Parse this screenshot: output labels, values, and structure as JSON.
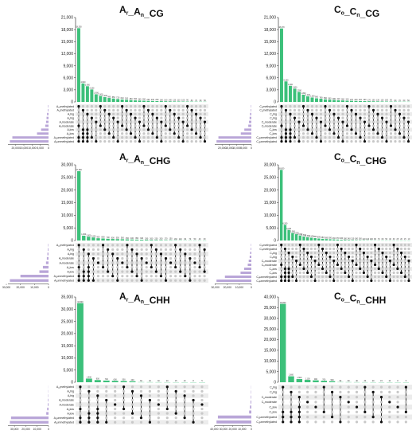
{
  "colors": {
    "bar": "#3cc07a",
    "set_bar": "#b9a6d8",
    "dot_on": "#111111",
    "dot_off": "#c8c8c8",
    "stripe": "#ececec"
  },
  "chart_data": [
    {
      "type": "bar",
      "title": "A_r _A_n _CG",
      "title_parts": [
        [
          "A",
          "r"
        ],
        [
          "_A",
          "n"
        ],
        [
          "_CG",
          ""
        ]
      ],
      "ylim": [
        0,
        21000
      ],
      "yticks": [
        0,
        3000,
        6000,
        9000,
        12000,
        15000,
        18000,
        21000
      ],
      "values": [
        18350,
        4600,
        3900,
        3100,
        1900,
        1500,
        1200,
        980,
        850,
        720,
        610,
        520,
        450,
        390,
        340,
        300,
        260,
        230,
        200,
        180,
        160,
        140,
        120,
        110,
        100,
        90,
        80,
        70,
        60,
        50
      ],
      "sets": [
        "A_m_methylated",
        "A_n_methylated",
        "A_r_hig",
        "A_n_hig",
        "A_r_moderate",
        "A_n_moderate",
        "A_r_low",
        "A_n_low",
        "A_n_unmethylated",
        "A_r_unmethylated"
      ],
      "set_sizes": [
        300,
        400,
        900,
        1200,
        1500,
        2000,
        4500,
        7000,
        22000,
        23500
      ],
      "set_ticks": [
        20000,
        15000,
        10000,
        5000,
        0
      ]
    },
    {
      "type": "bar",
      "title": "C_o _C_n _CG",
      "title_parts": [
        [
          "C",
          "o"
        ],
        [
          "_C",
          "n"
        ],
        [
          "_CG",
          ""
        ]
      ],
      "ylim": [
        0,
        21000
      ],
      "yticks": [
        0,
        3000,
        6000,
        9000,
        12000,
        15000,
        18000,
        21000
      ],
      "values": [
        18270,
        5100,
        4000,
        3300,
        2500,
        1800,
        1400,
        1100,
        900,
        780,
        650,
        560,
        480,
        410,
        360,
        310,
        270,
        240,
        210,
        190,
        170,
        150,
        130,
        115,
        100,
        90,
        80,
        70,
        60,
        50
      ],
      "sets": [
        "C_o_methylated",
        "C_n_methylated",
        "C_o_hig",
        "C_n_hig",
        "C_o_moderate",
        "C_n_moderate",
        "C_o_low",
        "C_n_low",
        "C_o_unmethylated",
        "C_n_unmethylated"
      ],
      "set_sizes": [
        300,
        400,
        900,
        1200,
        1600,
        2100,
        4800,
        7200,
        22500,
        23800
      ],
      "set_ticks": [
        20000,
        15000,
        10000,
        5000,
        0
      ]
    },
    {
      "type": "bar",
      "title": "A_r _A_n _CHG",
      "title_parts": [
        [
          "A",
          "r"
        ],
        [
          "_A",
          "n"
        ],
        [
          "_CHG",
          ""
        ]
      ],
      "ylim": [
        0,
        30000
      ],
      "yticks": [
        0,
        5000,
        10000,
        15000,
        20000,
        25000,
        30000
      ],
      "values": [
        27500,
        1900,
        1500,
        1200,
        900,
        800,
        700,
        600,
        550,
        500,
        450,
        400,
        350,
        320,
        290,
        260,
        230,
        200,
        170,
        150,
        130,
        110,
        90,
        70,
        50,
        40,
        30
      ],
      "sets": [
        "A_m_methylated",
        "A_n_hig",
        "A_r_hig",
        "A_n_moderate",
        "A_r_moderate",
        "A_n_low",
        "A_r_low",
        "A_n_unmethylated",
        "A_r_unmethylated"
      ],
      "set_sizes": [
        300,
        500,
        800,
        1200,
        1800,
        4000,
        6500,
        20000,
        27500
      ],
      "set_ticks": [
        30000,
        20000,
        10000,
        0
      ]
    },
    {
      "type": "bar",
      "title": "C_o _C_n _CHG",
      "title_parts": [
        [
          "C",
          "o"
        ],
        [
          "_C",
          "n"
        ],
        [
          "_CHG",
          ""
        ]
      ],
      "ylim": [
        0,
        30000
      ],
      "yticks": [
        0,
        5000,
        10000,
        15000,
        20000,
        25000,
        30000
      ],
      "values": [
        28000,
        6200,
        4200,
        3000,
        2500,
        2000,
        1600,
        1300,
        1100,
        950,
        800,
        680,
        580,
        500,
        430,
        370,
        320,
        280,
        240,
        210,
        180,
        160,
        140,
        120,
        100,
        80,
        70,
        60,
        50,
        40,
        30,
        25,
        20,
        15,
        10
      ],
      "sets": [
        "C_o_methylated",
        "C_n_methylated",
        "C_o_hig",
        "C_n_hig",
        "C_o_moderate",
        "C_n_moderate",
        "C_o_low",
        "C_n_low",
        "C_o_unmethylated",
        "C_n_unmethylated"
      ],
      "set_sizes": [
        300,
        500,
        1000,
        1400,
        2200,
        3000,
        6000,
        9000,
        22000,
        29000
      ],
      "set_ticks": [
        30000,
        20000,
        10000,
        0
      ]
    },
    {
      "type": "bar",
      "title": "A_r _A_n _CHH",
      "title_parts": [
        [
          "A",
          "r"
        ],
        [
          "_A",
          "n"
        ],
        [
          "_CHH",
          ""
        ]
      ],
      "ylim": [
        0,
        35000
      ],
      "yticks": [
        0,
        5000,
        10000,
        15000,
        20000,
        25000,
        30000,
        35000
      ],
      "values": [
        32500,
        1500,
        900,
        700,
        600,
        500,
        400,
        60,
        40,
        30,
        20,
        15,
        10,
        8,
        5
      ],
      "sets": [
        "A_m_methylated",
        "A_n_hig",
        "A_r_hig",
        "A_n_moderate",
        "A_r_moderate",
        "A_n_low",
        "A_r_low",
        "A_n_unmethylated",
        "A_r_unmethylated"
      ],
      "set_sizes": [
        100,
        200,
        300,
        500,
        700,
        1200,
        2000,
        33000,
        34000
      ],
      "set_ticks": [
        30000,
        20000,
        10000,
        0
      ]
    },
    {
      "type": "bar",
      "title": "C_o _C_n _CHH",
      "title_parts": [
        [
          "C",
          "o"
        ],
        [
          "_C",
          "n"
        ],
        [
          "_CHH",
          ""
        ]
      ],
      "ylim": [
        0,
        40000
      ],
      "yticks": [
        0,
        5000,
        10000,
        15000,
        20000,
        25000,
        30000,
        35000,
        40000
      ],
      "values": [
        36800,
        2800,
        1500,
        1100,
        900,
        700,
        500,
        90,
        60,
        40,
        30,
        20,
        15,
        10,
        8,
        5
      ],
      "sets": [
        "C_o_hig",
        "C_n_hig",
        "C_o_moderate",
        "C_n_moderate",
        "C_o_low",
        "C_n_low",
        "C_o_unmethylated",
        "C_n_unmethylated"
      ],
      "set_sizes": [
        200,
        400,
        600,
        900,
        1500,
        2400,
        36000,
        37500
      ],
      "set_ticks": [
        40000,
        30000,
        20000,
        10000,
        0
      ]
    }
  ]
}
